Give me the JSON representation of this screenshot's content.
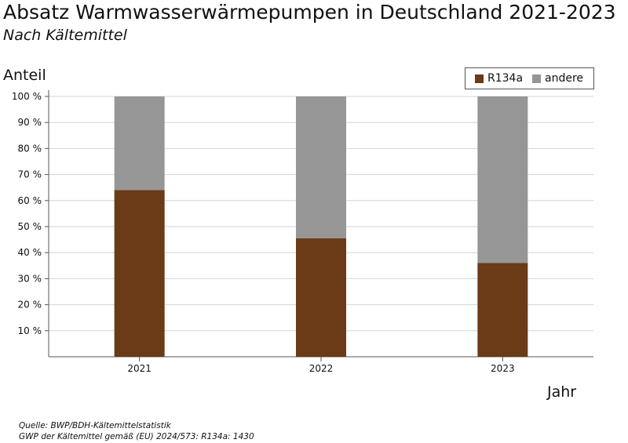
{
  "chart_data": {
    "type": "bar",
    "stacked": true,
    "title": "Absatz Warmwasserwärmepumpen in Deutschland 2021-2023",
    "subtitle": "Nach Kältemittel",
    "xlabel": "Jahr",
    "ylabel": "Anteil",
    "categories": [
      "2021",
      "2022",
      "2023"
    ],
    "series": [
      {
        "name": "R134a",
        "color": "#6b3a16",
        "values": [
          64,
          45.5,
          36
        ]
      },
      {
        "name": "andere",
        "color": "#969696",
        "values": [
          36,
          54.5,
          64
        ]
      }
    ],
    "ylim": [
      0,
      100
    ],
    "yticks": [
      "10 %",
      "20 %",
      "30 %",
      "40 %",
      "50 %",
      "60 %",
      "70 %",
      "80 %",
      "90 %",
      "100 %"
    ],
    "grid": true,
    "legend_position": "top-right"
  },
  "footer": {
    "source": "Quelle: BWP/BDH-Kältemittelstatistik",
    "note": "GWP der Kältemittel gemäß (EU) 2024/573: R134a: 1430"
  }
}
